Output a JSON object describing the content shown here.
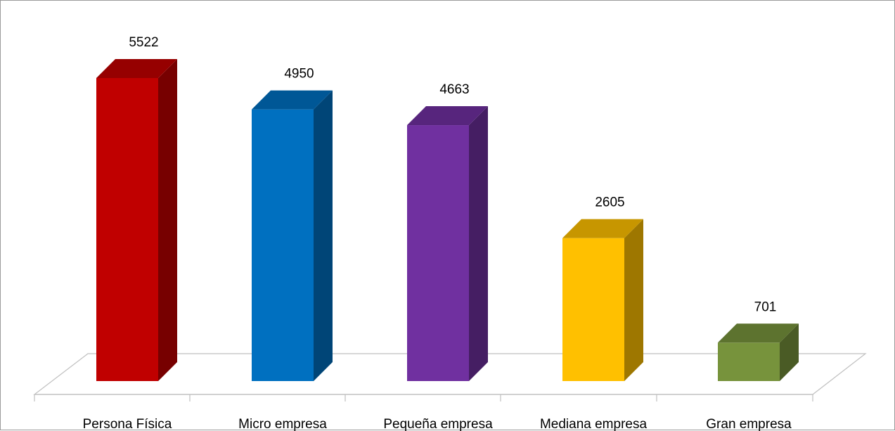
{
  "chart_data": {
    "type": "bar",
    "style": "3d-column",
    "categories": [
      "Persona Física",
      "Micro empresa",
      "Pequeña empresa",
      "Mediana empresa",
      "Gran empresa"
    ],
    "values": [
      5522,
      4950,
      4663,
      2605,
      701
    ],
    "data_labels": [
      "5522",
      "4950",
      "4663",
      "2605",
      "701"
    ],
    "colors": [
      "#C00000",
      "#0070C0",
      "#7030A0",
      "#FFC000",
      "#77933C"
    ],
    "title": "",
    "xlabel": "",
    "ylabel": "",
    "ylim": [
      0,
      6000
    ],
    "grid": false,
    "legend": "none"
  }
}
